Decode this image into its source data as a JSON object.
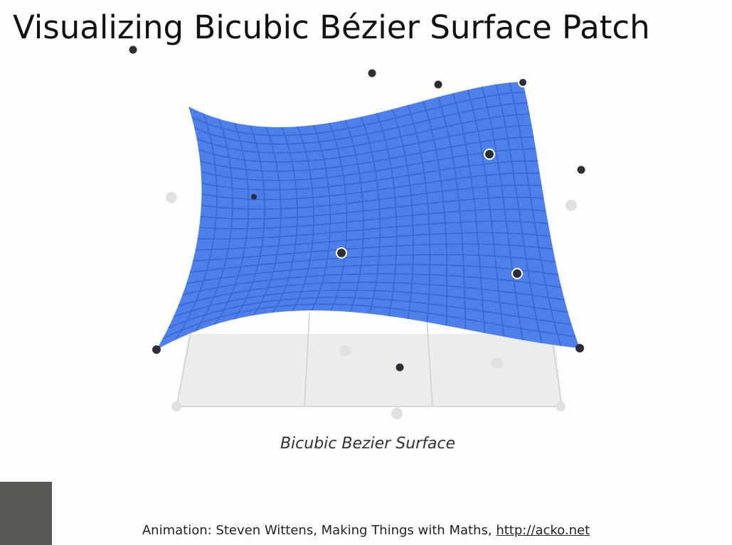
{
  "header": {
    "title": "Visualizing Bicubic Bézier Surface Patch"
  },
  "figure": {
    "caption": "Bicubic Bezier Surface"
  },
  "footer": {
    "credit": "Animation: Steven Wittens, Making Things with Maths,",
    "link": "http://acko.net"
  }
}
